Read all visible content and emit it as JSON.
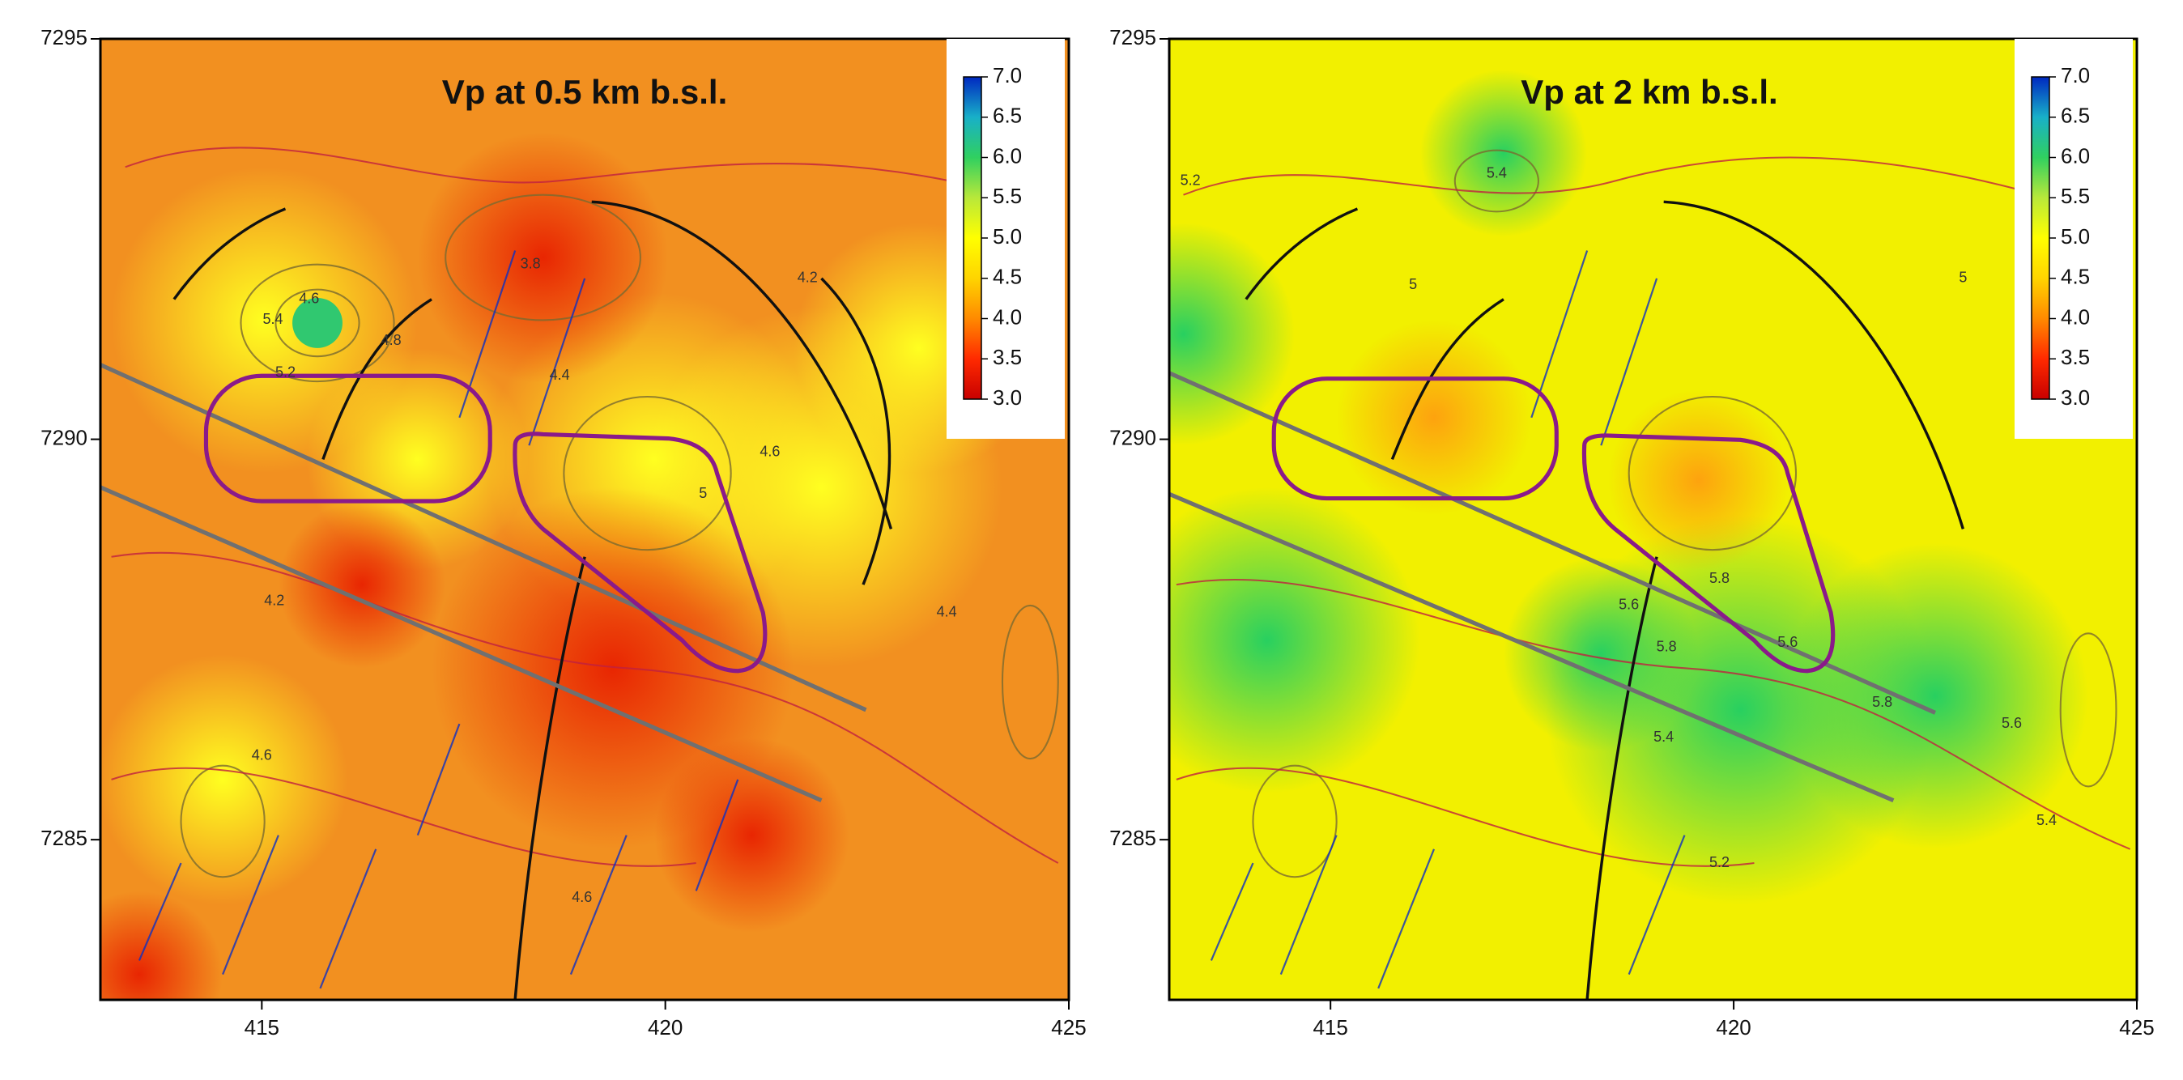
{
  "chart_data": [
    {
      "type": "map",
      "title": "Vp at 0.5 km b.s.l.",
      "xlim": [
        413,
        425
      ],
      "ylim": [
        7283,
        7295
      ],
      "xticks": [
        415,
        420,
        425
      ],
      "yticks": [
        7285,
        7290,
        7295
      ],
      "colorbar": {
        "lim": [
          3,
          7
        ],
        "ticks": [
          {
            "value": 3,
            "label": "3.0"
          },
          {
            "value": 3.5,
            "label": "3.5"
          },
          {
            "value": 4,
            "label": "4.0"
          },
          {
            "value": 4.5,
            "label": "4.5"
          },
          {
            "value": 5,
            "label": "5.0"
          },
          {
            "value": 5.5,
            "label": "5.5"
          },
          {
            "value": 6,
            "label": "6.0"
          },
          {
            "value": 6.5,
            "label": "6.5"
          },
          {
            "value": 7,
            "label": "7.0"
          }
        ],
        "colors": [
          "#c80000",
          "#ff2a00",
          "#ff8a00",
          "#ffd400",
          "#ffff00",
          "#b8e83a",
          "#30d060",
          "#18b0c8",
          "#0028c0"
        ]
      },
      "contour_labels": [
        "5.4",
        "4.6",
        "4.8",
        "5.2",
        "3.8",
        "4.2",
        "4.4",
        "4.6",
        "4.2",
        "4.4",
        "4.6",
        "4.6",
        "5"
      ]
    },
    {
      "type": "map",
      "title": "Vp at 2 km b.s.l.",
      "xlim": [
        413,
        425
      ],
      "ylim": [
        7283,
        7295
      ],
      "xticks": [
        415,
        420,
        425
      ],
      "yticks": [
        7285,
        7290,
        7295
      ],
      "colorbar": {
        "lim": [
          3,
          7
        ],
        "ticks": [
          {
            "value": 3,
            "label": "3.0"
          },
          {
            "value": 3.5,
            "label": "3.5"
          },
          {
            "value": 4,
            "label": "4.0"
          },
          {
            "value": 4.5,
            "label": "4.5"
          },
          {
            "value": 5,
            "label": "5.0"
          },
          {
            "value": 5.5,
            "label": "5.5"
          },
          {
            "value": 6,
            "label": "6.0"
          },
          {
            "value": 6.5,
            "label": "6.5"
          },
          {
            "value": 7,
            "label": "7.0"
          }
        ],
        "colors": [
          "#c80000",
          "#ff2a00",
          "#ff8a00",
          "#ffd400",
          "#ffff00",
          "#b8e83a",
          "#30d060",
          "#18b0c8",
          "#0028c0"
        ]
      },
      "contour_labels": [
        "5.4",
        "5",
        "5.2",
        "5",
        "5.6",
        "5.8",
        "5.6",
        "5.8",
        "5.6",
        "5.4",
        "5.4",
        "5.2",
        "5.8"
      ]
    }
  ]
}
